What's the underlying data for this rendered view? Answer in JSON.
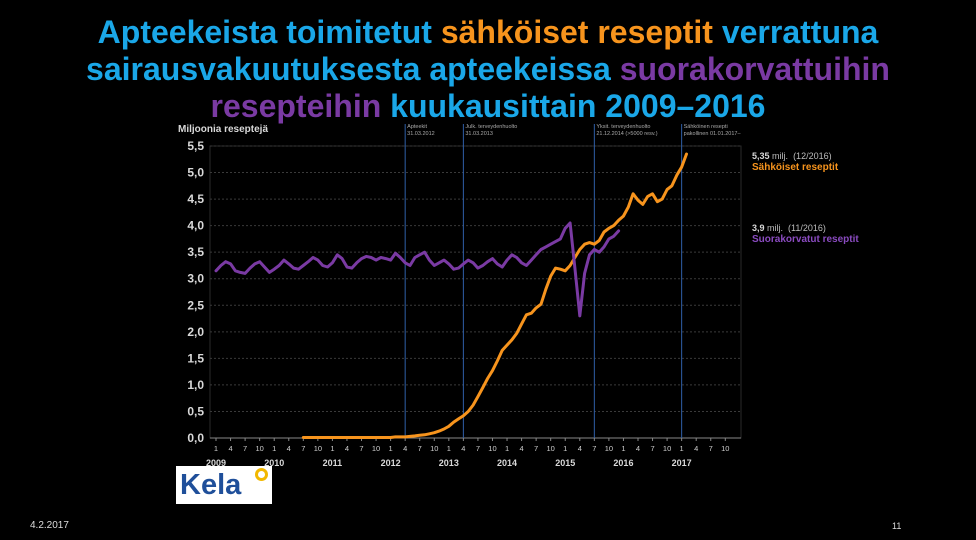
{
  "title": {
    "p1": "Apteekeista toimitetut ",
    "p2": "sähköiset reseptit",
    "p3": " verrattuna",
    "p4": "sairausvakuutuksesta apteekeissa ",
    "p5": "suorakorvattuihin",
    "p6": "resepteihin",
    "p7": " kuukausittain 2009–2016"
  },
  "colors": {
    "title_blue": "#1aa7e8",
    "electronic": "#f7941d",
    "direct": "#7a3aa3",
    "event_line": "#2f5fa8"
  },
  "logo": {
    "text": "Kela"
  },
  "footer": {
    "date": "4.2.2017",
    "page": "11"
  },
  "annotations": {
    "electronic": {
      "value": "5,35",
      "unit": "milj.",
      "period": "(12/2016)",
      "label": "Sähköiset reseptit"
    },
    "direct": {
      "value": "3,9",
      "unit": "milj.",
      "period": "(11/2016)",
      "label": "Suorakorvatut reseptit"
    }
  },
  "chart_data": {
    "type": "line",
    "ylabel": "Miljoonia  reseptejä",
    "ylim": [
      0,
      5.5
    ],
    "yticks": [
      "0,0",
      "0,5",
      "1,0",
      "1,5",
      "2,0",
      "2,5",
      "3,0",
      "3,5",
      "4,0",
      "4,5",
      "5,0",
      "5,5"
    ],
    "month_ticks": [
      "1",
      "4",
      "7",
      "10"
    ],
    "year_labels": [
      "2009",
      "2010",
      "2011",
      "2012",
      "2013",
      "2014",
      "2015",
      "2016",
      "2017"
    ],
    "x_start": "2009-01",
    "x_end": "2017-12",
    "grid": true,
    "event_lines": [
      {
        "month": "2012-04",
        "text1": "Apteekit",
        "text2": "31.03.2012"
      },
      {
        "month": "2013-04",
        "text1": "Julk. terveydenhuolto",
        "text2": "31.03.2013"
      },
      {
        "month": "2015-07",
        "text1": "Yksit. terveydenhuolto",
        "text2": "21.12.2014 (>5000 resv.)"
      },
      {
        "month": "2017-01",
        "text1": "Sähköinen resepti",
        "text2": "pakollinen 01.01.2017–"
      }
    ],
    "series": [
      {
        "name": "Sähköiset reseptit",
        "color": "#f7941d",
        "start": "2010-07",
        "values": [
          0.01,
          0.01,
          0.01,
          0.01,
          0.01,
          0.01,
          0.01,
          0.01,
          0.01,
          0.01,
          0.01,
          0.01,
          0.01,
          0.01,
          0.01,
          0.01,
          0.01,
          0.01,
          0.01,
          0.02,
          0.02,
          0.02,
          0.03,
          0.04,
          0.05,
          0.06,
          0.08,
          0.1,
          0.13,
          0.17,
          0.22,
          0.3,
          0.36,
          0.42,
          0.5,
          0.62,
          0.78,
          0.95,
          1.12,
          1.27,
          1.45,
          1.65,
          1.75,
          1.85,
          1.97,
          2.15,
          2.32,
          2.35,
          2.45,
          2.52,
          2.8,
          3.05,
          3.2,
          3.18,
          3.15,
          3.25,
          3.4,
          3.55,
          3.65,
          3.68,
          3.65,
          3.72,
          3.88,
          3.95,
          4.0,
          4.1,
          4.18,
          4.35,
          4.6,
          4.48,
          4.4,
          4.55,
          4.6,
          4.45,
          4.5,
          4.68,
          4.75,
          4.95,
          5.1,
          5.35
        ]
      },
      {
        "name": "Suorakorvatut reseptit",
        "color": "#7a3aa3",
        "start": "2009-01",
        "values": [
          3.15,
          3.25,
          3.32,
          3.28,
          3.15,
          3.12,
          3.1,
          3.2,
          3.28,
          3.32,
          3.22,
          3.12,
          3.18,
          3.25,
          3.35,
          3.28,
          3.2,
          3.18,
          3.25,
          3.32,
          3.4,
          3.35,
          3.25,
          3.22,
          3.3,
          3.45,
          3.38,
          3.22,
          3.2,
          3.3,
          3.38,
          3.42,
          3.4,
          3.35,
          3.4,
          3.38,
          3.35,
          3.48,
          3.4,
          3.3,
          3.25,
          3.4,
          3.45,
          3.5,
          3.35,
          3.25,
          3.3,
          3.35,
          3.28,
          3.18,
          3.2,
          3.28,
          3.35,
          3.3,
          3.2,
          3.25,
          3.32,
          3.38,
          3.28,
          3.22,
          3.35,
          3.45,
          3.4,
          3.3,
          3.25,
          3.35,
          3.45,
          3.55,
          3.6,
          3.65,
          3.7,
          3.75,
          3.95,
          4.05,
          3.2,
          2.3,
          3.1,
          3.45,
          3.55,
          3.5,
          3.6,
          3.75,
          3.8,
          3.9
        ]
      }
    ]
  }
}
